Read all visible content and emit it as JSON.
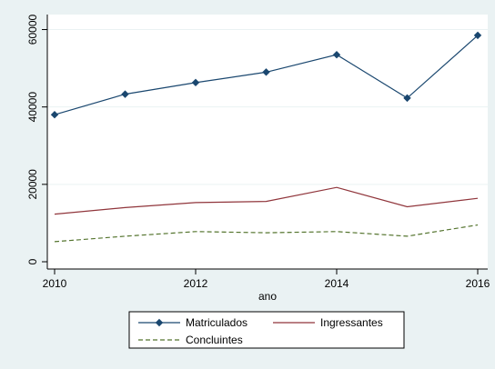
{
  "chart_data": {
    "type": "line",
    "xlabel": "ano",
    "ylabel": "",
    "title": "",
    "xlim": [
      2010,
      2016
    ],
    "ylim": [
      0,
      62000
    ],
    "x_ticks": [
      2010,
      2012,
      2014,
      2016
    ],
    "y_ticks": [
      0,
      20000,
      40000,
      60000
    ],
    "x": [
      2010,
      2011,
      2012,
      2013,
      2014,
      2015,
      2016
    ],
    "grid": true,
    "legend_position": "bottom",
    "series": [
      {
        "name": "Matriculados",
        "values": [
          38000,
          43300,
          46300,
          49000,
          53500,
          42300,
          58500
        ],
        "color": "#1a476f",
        "style": "solid",
        "marker": "diamond"
      },
      {
        "name": "Ingressantes",
        "values": [
          12300,
          14000,
          15300,
          15600,
          19200,
          14200,
          16400
        ],
        "color": "#90353b",
        "style": "solid",
        "marker": "none"
      },
      {
        "name": "Concluintes",
        "values": [
          5200,
          6600,
          7800,
          7500,
          7800,
          6600,
          9500
        ],
        "color": "#55752f",
        "style": "dashed",
        "marker": "none"
      }
    ]
  }
}
